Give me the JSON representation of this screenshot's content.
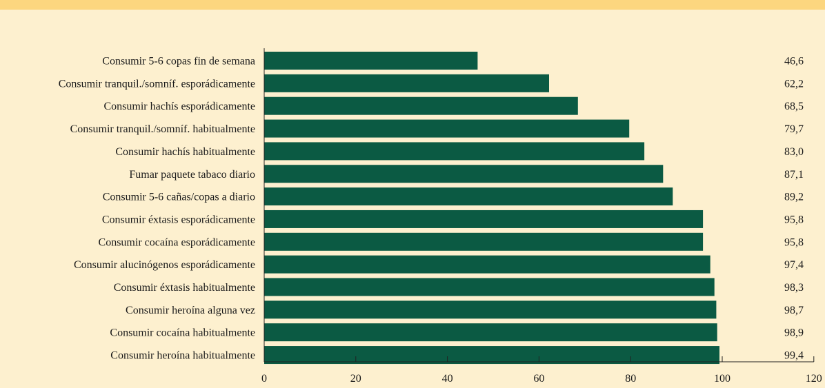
{
  "colors": {
    "bar": "#0b5a43",
    "background": "#fdf0cf",
    "band": "#fcd67f",
    "axis": "#222222"
  },
  "chart_data": {
    "type": "bar",
    "orientation": "horizontal",
    "title": "",
    "xlabel": "",
    "ylabel": "",
    "xlim": [
      0,
      120
    ],
    "xticks": [
      0,
      20,
      40,
      60,
      80,
      100,
      120
    ],
    "grid": false,
    "categories": [
      "Consumir 5-6 copas fin de semana",
      "Consumir tranquil./somníf. esporádicamente",
      "Consumir hachís esporádicamente",
      "Consumir tranquil./somníf. habitualmente",
      "Consumir hachís habitualmente",
      "Fumar paquete tabaco diario",
      "Consumir 5-6 cañas/copas a diario",
      "Consumir éxtasis esporádicamente",
      "Consumir cocaína esporádicamente",
      "Consumir alucinógenos esporádicamente",
      "Consumir éxtasis habitualmente",
      "Consumir heroína alguna vez",
      "Consumir cocaína habitualmente",
      "Consumir heroína habitualmente"
    ],
    "values": [
      46.6,
      62.2,
      68.5,
      79.7,
      83.0,
      87.1,
      89.2,
      95.8,
      95.8,
      97.4,
      98.3,
      98.7,
      98.9,
      99.4
    ],
    "value_labels": [
      "46,6",
      "62,2",
      "68,5",
      "79,7",
      "83,0",
      "87,1",
      "89,2",
      "95,8",
      "95,8",
      "97,4",
      "98,3",
      "98,7",
      "98,9",
      "99,4"
    ]
  }
}
